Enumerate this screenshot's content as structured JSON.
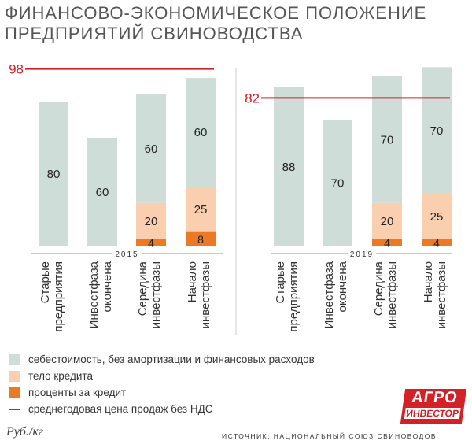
{
  "title": [
    "ФИНАНСОВО-ЭКОНОМИЧЕСКОЕ ПОЛОЖЕНИЕ",
    "ПРЕДПРИЯТИЙ СВИНОВОДСТВА"
  ],
  "colors": {
    "cost": "#cfddd8",
    "loan_body": "#f9cfb0",
    "interest": "#ec7a24",
    "price_line": "#d42027",
    "title": "#555555"
  },
  "chart_data": {
    "type": "bar",
    "stacked": true,
    "ylim": [
      0,
      100
    ],
    "series_names": [
      "себестоимость, без амортизации и финансовых расходов",
      "тело кредита",
      "проценты за кредит"
    ],
    "line_name": "среднегодовая цена продаж без НДС",
    "groups": [
      {
        "year": "2015",
        "price": 98,
        "categories": [
          "Старые предприятия",
          "Инвестфаза окончена",
          "Середина инвестфазы",
          "Начало инвестфазы"
        ],
        "category_lines": [
          [
            "Старые",
            "предприятия"
          ],
          [
            "Инвестфаза",
            "окончена"
          ],
          [
            "Середина",
            "инвестфазы"
          ],
          [
            "Начало",
            "инвестфазы"
          ]
        ],
        "cost": [
          80,
          60,
          60,
          60
        ],
        "loan_body": [
          null,
          null,
          20,
          25
        ],
        "interest": [
          null,
          null,
          4,
          8
        ]
      },
      {
        "year": "2019",
        "price": 82,
        "categories": [
          "Старые предприятия",
          "Инвестфаза окончена",
          "Середина инвестфазы",
          "Начало инвестфазы"
        ],
        "category_lines": [
          [
            "Старые",
            "предприятия"
          ],
          [
            "Инвестфаза",
            "окончена"
          ],
          [
            "Середина",
            "инвестфазы"
          ],
          [
            "Начало",
            "инвестфазы"
          ]
        ],
        "cost": [
          88,
          70,
          70,
          70
        ],
        "loan_body": [
          null,
          null,
          20,
          25
        ],
        "interest": [
          null,
          null,
          4,
          4
        ]
      }
    ]
  },
  "legend": [
    {
      "label": "себестоимость, без амортизации и финансовых расходов",
      "kind": "swatch",
      "color": "#cfddd8"
    },
    {
      "label": "тело кредита",
      "kind": "swatch",
      "color": "#f9cfb0"
    },
    {
      "label": "проценты за кредит",
      "kind": "swatch",
      "color": "#ec7a24"
    },
    {
      "label": "среднегодовая цена продаж без НДС",
      "kind": "line",
      "color": "#d42027"
    }
  ],
  "logo": {
    "top": "АГРО",
    "bottom": "ИНВЕСТОР"
  },
  "unit": "Руб./кг",
  "source": "ИСТОЧНИК: НАЦИОНАЛЬНЫЙ СОЮЗ СВИНОВОДОВ"
}
